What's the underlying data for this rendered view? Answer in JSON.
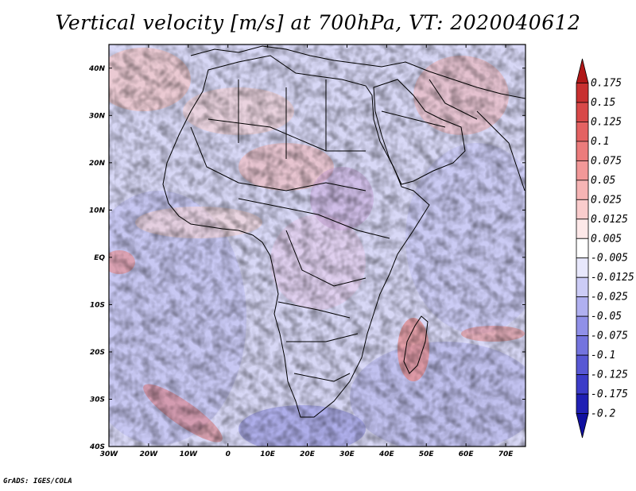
{
  "title": "Vertical velocity [m/s] at 700hPa, VT: 2020040612",
  "footer": "GrADS: IGES/COLA",
  "map": {
    "lon_range": [
      -30,
      75
    ],
    "lat_range": [
      -40,
      45
    ],
    "lat_ticks": [
      {
        "value": 40,
        "label": "40N"
      },
      {
        "value": 30,
        "label": "30N"
      },
      {
        "value": 20,
        "label": "20N"
      },
      {
        "value": 10,
        "label": "10N"
      },
      {
        "value": 0,
        "label": "EQ"
      },
      {
        "value": -10,
        "label": "10S"
      },
      {
        "value": -20,
        "label": "20S"
      },
      {
        "value": -30,
        "label": "30S"
      },
      {
        "value": -40,
        "label": "40S"
      }
    ],
    "lon_ticks": [
      {
        "value": -30,
        "label": "30W"
      },
      {
        "value": -20,
        "label": "20W"
      },
      {
        "value": -10,
        "label": "10W"
      },
      {
        "value": 0,
        "label": "0"
      },
      {
        "value": 10,
        "label": "10E"
      },
      {
        "value": 20,
        "label": "20E"
      },
      {
        "value": 30,
        "label": "30E"
      },
      {
        "value": 40,
        "label": "40E"
      },
      {
        "value": 50,
        "label": "50E"
      },
      {
        "value": 60,
        "label": "60E"
      },
      {
        "value": 70,
        "label": "70E"
      }
    ]
  },
  "colorbar": {
    "labels": [
      "0.175",
      "0.15",
      "0.125",
      "0.1",
      "0.075",
      "0.05",
      "0.025",
      "0.0125",
      "0.005",
      "-0.005",
      "-0.0125",
      "-0.025",
      "-0.05",
      "-0.075",
      "-0.1",
      "-0.125",
      "-0.175",
      "-0.2"
    ],
    "colors": [
      "#b01818",
      "#c83030",
      "#d84848",
      "#e46262",
      "#ec7c7c",
      "#f29898",
      "#f6b4b4",
      "#facccc",
      "#fde8e8",
      "#ffffff",
      "#e8e8fc",
      "#ccccf6",
      "#b0b0f0",
      "#9090e8",
      "#7474de",
      "#5858d4",
      "#3c3cc8",
      "#2020b4",
      "#1010a0"
    ]
  }
}
